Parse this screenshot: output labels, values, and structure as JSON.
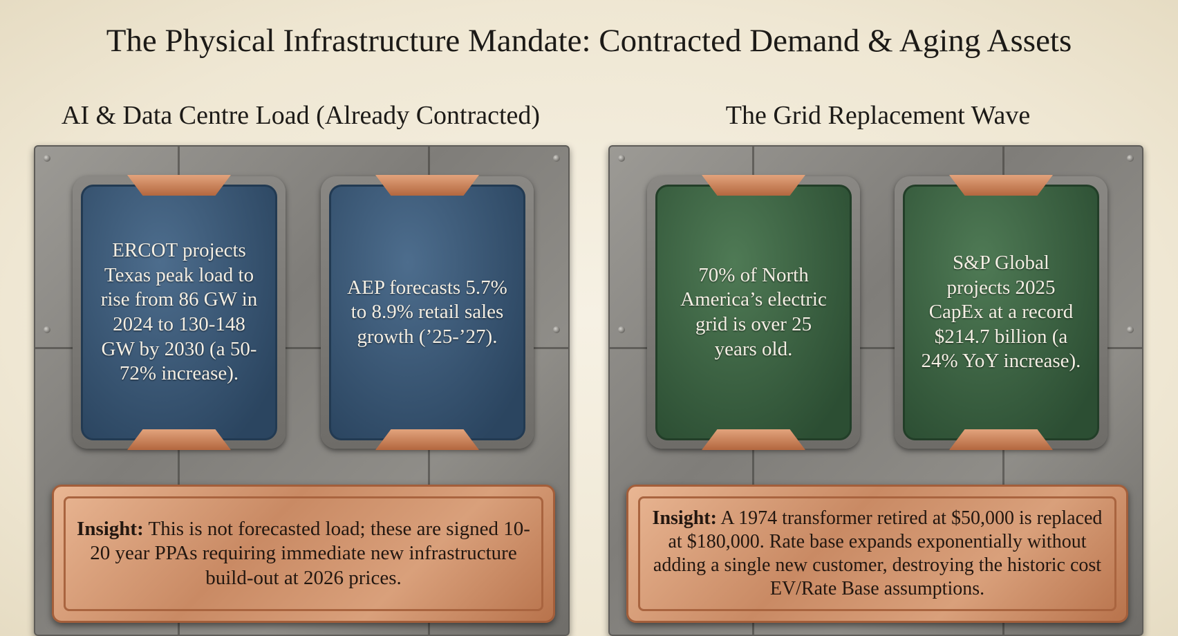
{
  "header": {
    "title": "The Physical Infrastructure Mandate: Contracted Demand & Aging Assets"
  },
  "panels": [
    {
      "heading": "AI & Data Centre Load (Already Contracted)",
      "cards": [
        {
          "text": "ERCOT projects Texas peak load to rise from 86 GW in 2024 to 130-148 GW by 2030 (a 50-72% increase)."
        },
        {
          "text": "AEP forecasts 5.7% to 8.9% retail sales growth (’25-’27)."
        }
      ],
      "insight": {
        "label": "Insight:",
        "text": "This is not forecasted load; these are signed 10-20 year PPAs requiring immediate new infrastructure build-out at 2026 prices."
      }
    },
    {
      "heading": "The Grid Replacement Wave",
      "cards": [
        {
          "text": "70% of North America’s electric grid is over 25 years old."
        },
        {
          "text": "S&P Global projects 2025 CapEx at a record $214.7 billion (a 24% YoY increase)."
        }
      ],
      "insight": {
        "label": "Insight:",
        "text": "A 1974 transformer retired at $50,000 is replaced at $180,000. Rate base expands exponentially without adding a single new customer, destroying the historic cost EV/Rate Base assumptions."
      }
    }
  ]
}
